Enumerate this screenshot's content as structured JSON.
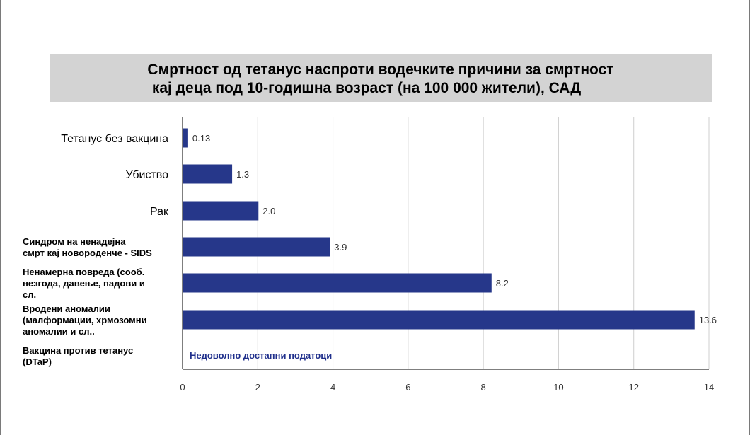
{
  "title": {
    "line1": "Смртност од тетанус наспроти водечките причини за смртност",
    "line2": "кај деца под 10-годишна возраст (на 100 000 жители), САД"
  },
  "chart_data": {
    "type": "bar",
    "orientation": "horizontal",
    "categories": [
      [
        "Тетанус без вакцина"
      ],
      [
        "Убиство"
      ],
      [
        "Рак"
      ],
      [
        "Синдром на ненадејна",
        "смрт кај новороденче - SIDS"
      ],
      [
        "Ненамерна повреда (сооб.",
        "незгода, давење, падови и",
        "сл."
      ],
      [
        "Вродени аномалии",
        "(малформации, хрмозомни",
        "аномалии и сл.."
      ],
      [
        "Вакцина против тетанус",
        "(DTaP)"
      ]
    ],
    "values": [
      0.13,
      1.3,
      2.0,
      3.9,
      8.2,
      13.6,
      null
    ],
    "value_labels": [
      "0.13",
      "1.3",
      "2.0",
      "3.9",
      "8.2",
      "13.6",
      ""
    ],
    "no_data_label": "Недоволно достапни податоци",
    "xlim": [
      0,
      14
    ],
    "xticks": [
      0,
      2,
      4,
      6,
      8,
      10,
      12,
      14
    ],
    "grid": true,
    "bar_color": "#26378a",
    "grid_color": "#cfcfcf"
  }
}
